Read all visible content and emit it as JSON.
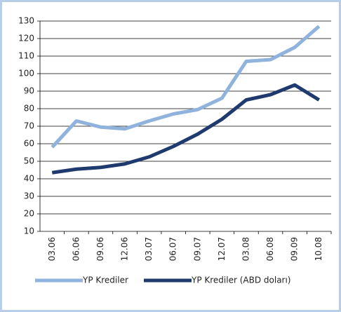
{
  "chart_data": {
    "type": "line",
    "categories": [
      "03.06",
      "06.06",
      "09.06",
      "12.06",
      "03.07",
      "06.07",
      "09.07",
      "12.07",
      "03.08",
      "06.08",
      "09.09",
      "10.08"
    ],
    "series": [
      {
        "name": "YP Krediler",
        "color": "#8fb3dc",
        "values": [
          58,
          73,
          69.5,
          68.5,
          73,
          77,
          79.5,
          86,
          107,
          108,
          115,
          127
        ]
      },
      {
        "name": "YP Krediler (ABD doları)",
        "color": "#1f3a6e",
        "values": [
          43.5,
          45.5,
          46.5,
          48.5,
          52.5,
          58.5,
          65.5,
          74,
          85,
          88,
          93.5,
          85
        ]
      }
    ],
    "ylim": [
      10,
      130
    ],
    "yticks": [
      10,
      20,
      30,
      40,
      50,
      60,
      70,
      80,
      90,
      100,
      110,
      120,
      130
    ],
    "grid": true
  }
}
